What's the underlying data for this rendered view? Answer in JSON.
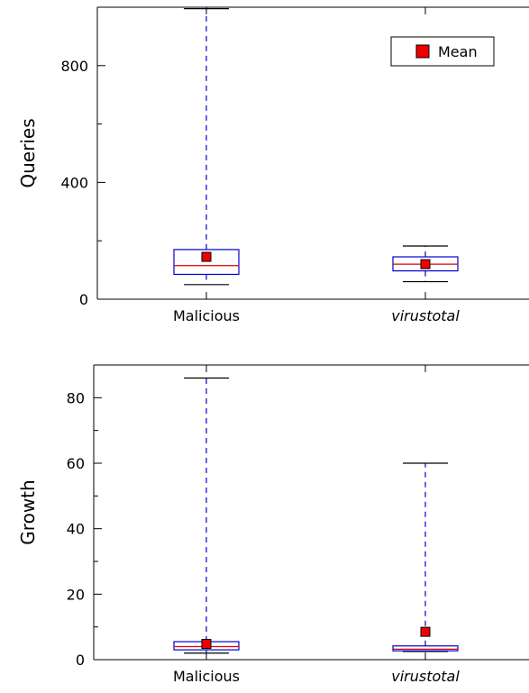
{
  "chart_data": [
    {
      "type": "box",
      "ylabel": "Queries",
      "ylim": [
        0,
        1000
      ],
      "yticks": [
        0,
        400,
        800
      ],
      "categories": [
        "Malicious",
        "virustotal"
      ],
      "boxes": [
        {
          "category": "Malicious",
          "min": 50,
          "q1": 85,
          "median": 115,
          "q3": 170,
          "max": 995,
          "mean": 145
        },
        {
          "category": "virustotal",
          "min": 60,
          "q1": 97,
          "median": 120,
          "q3": 145,
          "max": 182,
          "mean": 120
        }
      ],
      "legend": {
        "label": "Mean",
        "position": "top-right",
        "color": "#ee0000"
      }
    },
    {
      "type": "box",
      "ylabel": "Growth",
      "ylim": [
        0,
        90
      ],
      "yticks": [
        0,
        20,
        40,
        60,
        80
      ],
      "categories": [
        "Malicious",
        "virustotal"
      ],
      "boxes": [
        {
          "category": "Malicious",
          "min": 2,
          "q1": 3,
          "median": 4,
          "q3": 5.5,
          "max": 86,
          "mean": 4.8
        },
        {
          "category": "virustotal",
          "min": 2.5,
          "q1": 2.7,
          "median": 3.2,
          "q3": 4.2,
          "max": 60,
          "mean": 8.5
        }
      ]
    }
  ],
  "colors": {
    "box": "#0000cc",
    "whisker": "#0000cc",
    "median": "#dd0000",
    "mean_marker": "#ee0000",
    "axis": "#000000"
  },
  "fonts": {
    "italic_categories": [
      "virustotal"
    ]
  }
}
